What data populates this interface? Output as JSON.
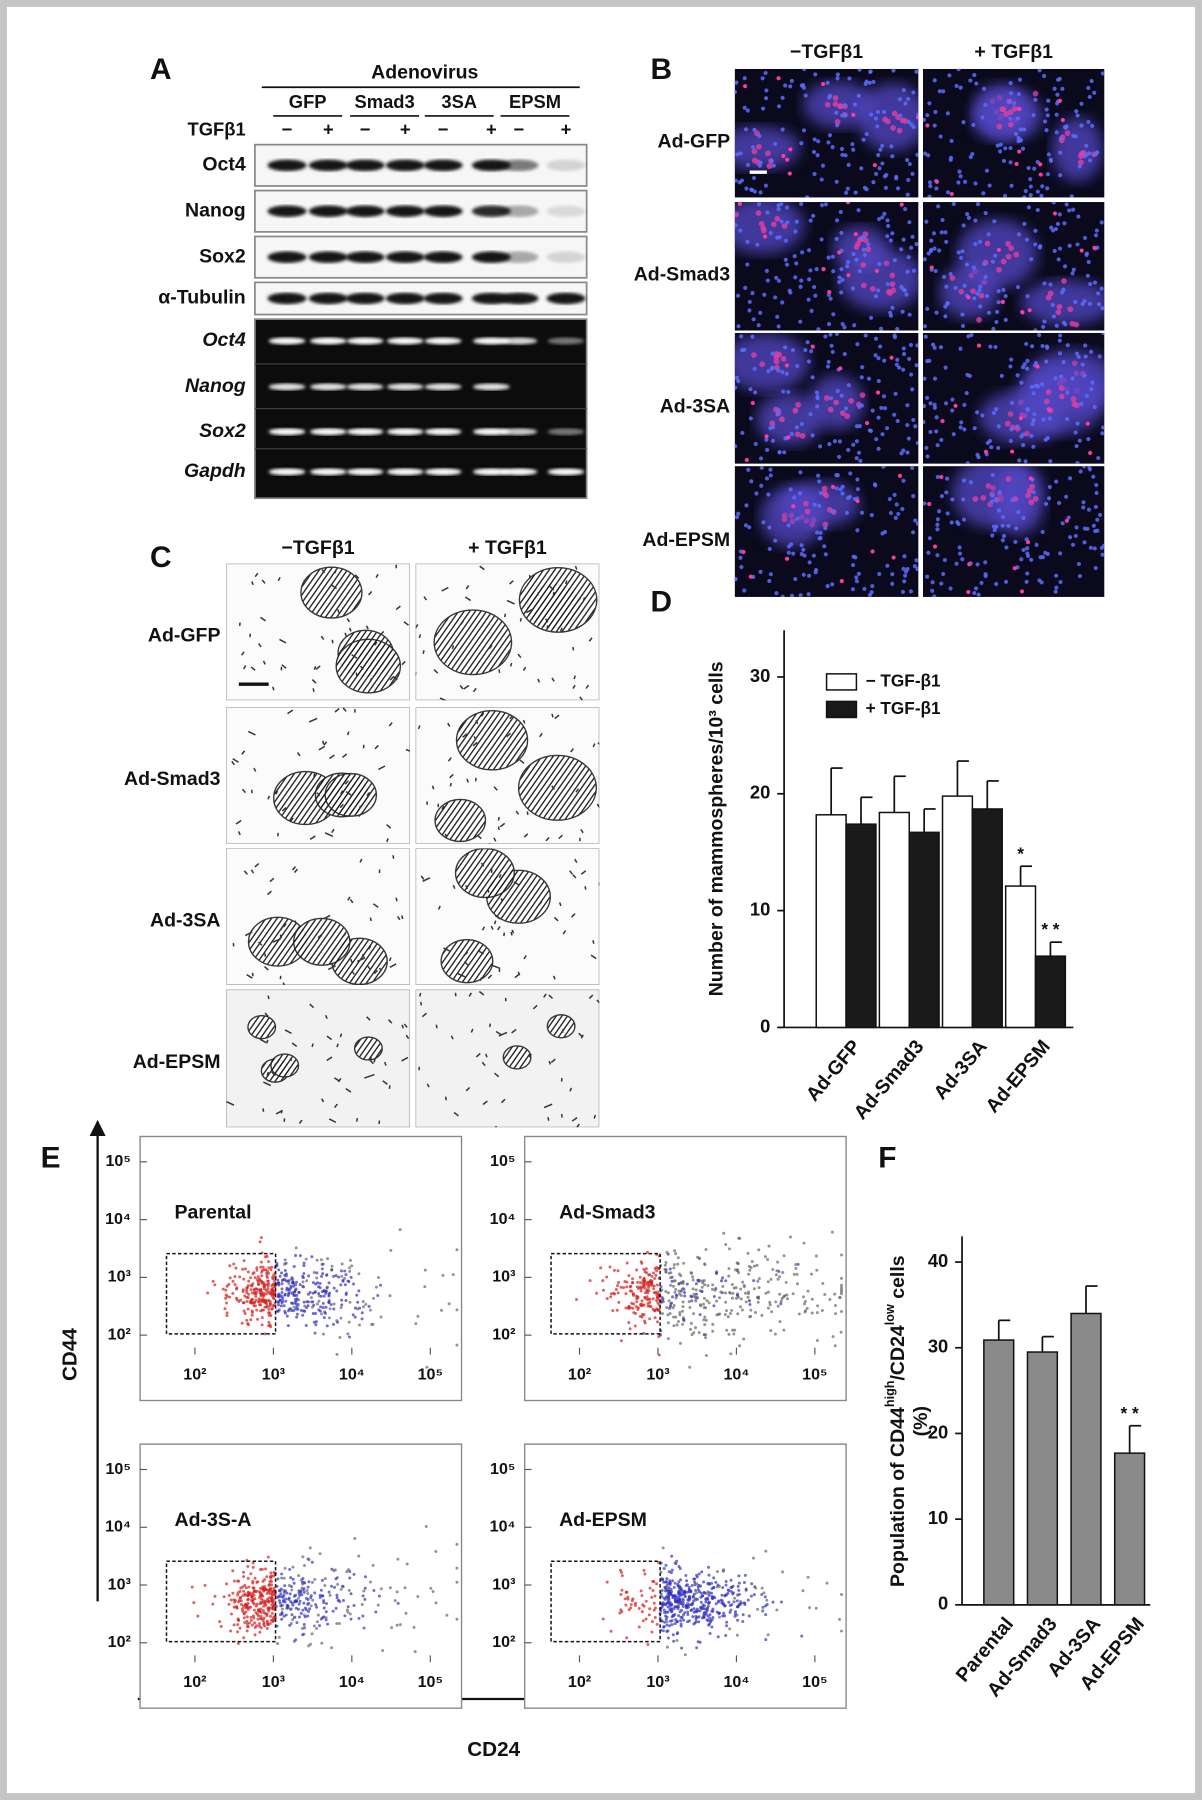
{
  "panel_labels": [
    "A",
    "B",
    "C",
    "D",
    "E",
    "F"
  ],
  "blot": {
    "header": "Adenovirus",
    "groups": [
      "GFP",
      "Smad3",
      "3SA",
      "EPSM"
    ],
    "treatment_label": "TGFβ1",
    "treatment_signs": [
      "−",
      "+"
    ],
    "protein_rows": [
      "Oct4",
      "Nanog",
      "Sox2",
      "α-Tubulin"
    ],
    "rna_rows": [
      "Oct4",
      "Nanog",
      "Sox2",
      "Gapdh"
    ]
  },
  "micrographs_b": {
    "columns": [
      "−TGFβ1",
      "+ TGFβ1"
    ],
    "rows": [
      "Ad-GFP",
      "Ad-Smad3",
      "Ad-3SA",
      "Ad-EPSM"
    ]
  },
  "micrographs_c": {
    "columns": [
      "−TGFβ1",
      "+ TGFβ1"
    ],
    "rows": [
      "Ad-GFP",
      "Ad-Smad3",
      "Ad-3SA",
      "Ad-EPSM"
    ]
  },
  "flow": {
    "x_label": "CD24",
    "y_label": "CD44",
    "panels": [
      "Parental",
      "Ad-Smad3",
      "Ad-3S-A",
      "Ad-EPSM"
    ],
    "log_scale": true,
    "xlim": [
      20,
      250000
    ],
    "ylim": [
      46,
      275000
    ],
    "xticks": [
      {
        "value": 100,
        "label": "10²"
      },
      {
        "value": 1000,
        "label": "10³"
      },
      {
        "value": 10000,
        "label": "10⁴"
      },
      {
        "value": 100000,
        "label": "10⁵"
      }
    ],
    "yticks": [
      {
        "value": 100,
        "label": "10²"
      },
      {
        "value": 1000,
        "label": "10³"
      },
      {
        "value": 10000,
        "label": "10⁴"
      },
      {
        "value": 100000,
        "label": "10⁵"
      }
    ]
  },
  "chart_data": [
    {
      "type": "bar",
      "y_label": "Number of mammospheres/10³ cells",
      "categories": [
        "Ad-GFP",
        "Ad-Smad3",
        "Ad-3SA",
        "Ad-EPSM"
      ],
      "series": [
        {
          "name": "− TGF-β1",
          "color": "#ffffff",
          "values": [
            18.2,
            18.4,
            19.8,
            12.1
          ],
          "errors": [
            4.0,
            3.1,
            3.0,
            1.7
          ],
          "markers": [
            null,
            null,
            null,
            "*"
          ]
        },
        {
          "name": "+ TGF-β1",
          "color": "#1a1a1a",
          "values": [
            17.4,
            16.7,
            18.7,
            6.1
          ],
          "errors": [
            2.3,
            2.0,
            2.4,
            1.2
          ],
          "markers": [
            null,
            null,
            null,
            "* *"
          ]
        }
      ],
      "ylim": [
        0,
        34
      ],
      "yticks": [
        0,
        10,
        20,
        30
      ],
      "legend": "top-left"
    },
    {
      "type": "bar",
      "y_label": [
        "Population of CD44",
        "high",
        "/CD24",
        "low",
        " cells"
      ],
      "y_label_unit": "(%)",
      "categories": [
        "Parental",
        "Ad-Smad3",
        "Ad-3SA",
        "Ad-EPSM"
      ],
      "series": [
        {
          "color": "#8a8a8a",
          "values": [
            30.9,
            29.5,
            34.0,
            17.7
          ],
          "errors": [
            2.3,
            1.8,
            3.2,
            3.2
          ],
          "markers": [
            null,
            null,
            null,
            "* *"
          ]
        }
      ],
      "ylim": [
        0,
        43
      ],
      "yticks": [
        0,
        10,
        20,
        30,
        40
      ]
    }
  ]
}
